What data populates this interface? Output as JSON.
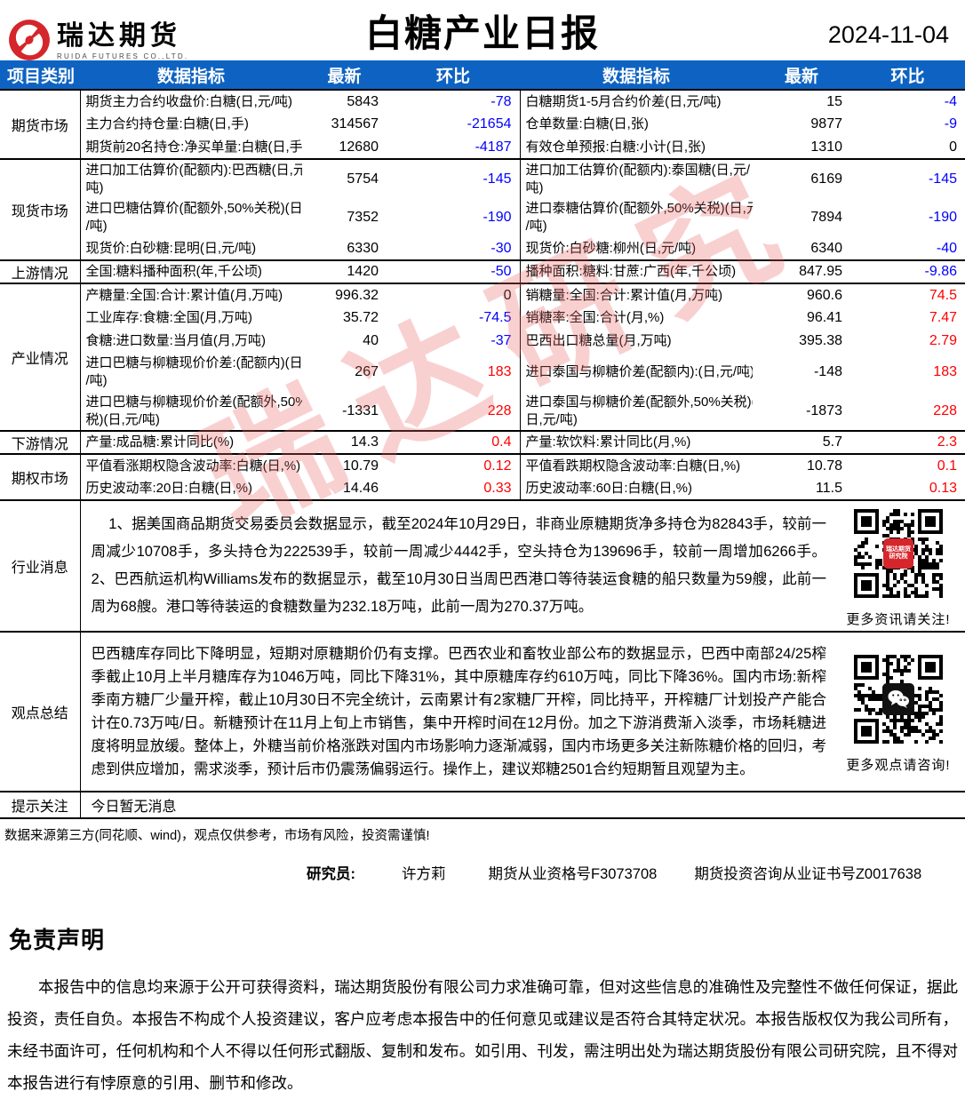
{
  "header": {
    "brand": "瑞达期货",
    "brand_sub": "RUIDA FUTURES CO.,LTD.",
    "title": "白糖产业日报",
    "date": "2024-11-04"
  },
  "colors": {
    "header_bg": "#0e63c2",
    "down": "#0000fe",
    "up": "#fe0000",
    "flat": "#000000",
    "logo_red": "#d5262b",
    "watermark": "rgba(236,100,100,0.30)"
  },
  "watermark": {
    "text": "瑞达研究"
  },
  "table": {
    "headers": {
      "category": "项目类别",
      "indicator": "数据指标",
      "latest": "最新",
      "change": "环比"
    },
    "sections": [
      {
        "category": "期货市场",
        "rows": [
          {
            "l": [
              "期货主力合约收盘价:白糖(日,元/吨)",
              "5843",
              "-78",
              "down"
            ],
            "r": [
              "白糖期货1-5月合约价差(日,元/吨)",
              "15",
              "-4",
              "down"
            ]
          },
          {
            "l": [
              "主力合约持仓量:白糖(日,手)",
              "314567",
              "-21654",
              "down"
            ],
            "r": [
              "仓单数量:白糖(日,张)",
              "9877",
              "-9",
              "down"
            ]
          },
          {
            "l": [
              "期货前20名持仓:净买单量:白糖(日,手)",
              "12680",
              "-4187",
              "down"
            ],
            "r": [
              "有效仓单预报:白糖:小计(日,张)",
              "1310",
              "0",
              "flat"
            ]
          }
        ]
      },
      {
        "category": "现货市场",
        "rows": [
          {
            "l": [
              "进口加工估算价(配额内):巴西糖(日,元/\n吨)",
              "5754",
              "-145",
              "down"
            ],
            "r": [
              "进口加工估算价(配额内):泰国糖(日,元/\n吨)",
              "6169",
              "-145",
              "down"
            ]
          },
          {
            "l": [
              "进口巴糖估算价(配额外,50%关税)(日,元\n/吨)",
              "7352",
              "-190",
              "down"
            ],
            "r": [
              "进口泰糖估算价(配额外,50%关税)(日,元\n/吨)",
              "7894",
              "-190",
              "down"
            ]
          },
          {
            "l": [
              "现货价:白砂糖:昆明(日,元/吨)",
              "6330",
              "-30",
              "down"
            ],
            "r": [
              "现货价:白砂糖:柳州(日,元/吨)",
              "6340",
              "-40",
              "down"
            ]
          }
        ]
      },
      {
        "category": "上游情况",
        "rows": [
          {
            "l": [
              "全国:糖料播种面积(年,千公顷)",
              "1420",
              "-50",
              "down"
            ],
            "r": [
              "播种面积:糖料:甘蔗:广西(年,千公顷)",
              "847.95",
              "-9.86",
              "down"
            ]
          }
        ]
      },
      {
        "category": "产业情况",
        "rows": [
          {
            "l": [
              "产糖量:全国:合计:累计值(月,万吨)",
              "996.32",
              "0",
              "flat"
            ],
            "r": [
              "销糖量:全国:合计:累计值(月,万吨)",
              "960.6",
              "74.5",
              "up"
            ]
          },
          {
            "l": [
              "工业库存:食糖:全国(月,万吨)",
              "35.72",
              "-74.5",
              "down"
            ],
            "r": [
              "销糖率:全国:合计(月,%)",
              "96.41",
              "7.47",
              "up"
            ]
          },
          {
            "l": [
              "食糖:进口数量:当月值(月,万吨)",
              "40",
              "-37",
              "down"
            ],
            "r": [
              "巴西出口糖总量(月,万吨)",
              "395.38",
              "2.79",
              "up"
            ]
          },
          {
            "l": [
              "进口巴糖与柳糖现价价差:(配额内)(日,元\n/吨)",
              "267",
              "183",
              "up"
            ],
            "r": [
              "进口泰国与柳糖价差(配额内):(日,元/吨)",
              "-148",
              "183",
              "up"
            ]
          },
          {
            "l": [
              "进口巴糖与柳糖现价价差(配额外,50%关\n税)(日,元/吨)",
              "-1331",
              "228",
              "up"
            ],
            "r": [
              "进口泰国与柳糖价差(配额外,50%关税)(\n日,元/吨)",
              "-1873",
              "228",
              "up"
            ]
          }
        ]
      },
      {
        "category": "下游情况",
        "rows": [
          {
            "l": [
              "产量:成品糖:累计同比(%)",
              "14.3",
              "0.4",
              "up"
            ],
            "r": [
              "产量:软饮料:累计同比(月,%)",
              "5.7",
              "2.3",
              "up"
            ]
          }
        ]
      },
      {
        "category": "期权市场",
        "rows": [
          {
            "l": [
              "平值看涨期权隐含波动率:白糖(日,%)",
              "10.79",
              "0.12",
              "up"
            ],
            "r": [
              "平值看跌期权隐含波动率:白糖(日,%)",
              "10.78",
              "0.1",
              "up"
            ]
          },
          {
            "l": [
              "历史波动率:20日:白糖(日,%)",
              "14.46",
              "0.33",
              "up"
            ],
            "r": [
              "历史波动率:60日:白糖(日,%)",
              "11.5",
              "0.13",
              "up"
            ]
          }
        ]
      }
    ],
    "notes": [
      {
        "category": "行业消息",
        "text": "1、据美国商品期货交易委员会数据显示，截至2024年10月29日，非商业原糖期货净多持仓为82843手，较前一周减少10708手，多头持仓为222539手，较前一周减少4442手，空头持仓为139696手，较前一周增加6266手。 2、巴西航运机构Williams发布的数据显示，截至10月30日当周巴西港口等待装运食糖的船只数量为59艘，此前一周为68艘。港口等待装运的食糖数量为232.18万吨，此前一周为270.37万吨。",
        "qr_caption": "更多资讯请关注!",
        "qr_center_lines": [
          "瑞达期货",
          "研究院"
        ]
      },
      {
        "category": "观点总结",
        "text": "巴西糖库存同比下降明显，短期对原糖期价仍有支撑。巴西农业和畜牧业部公布的数据显示，巴西中南部24/25榨季截止10月上半月糖库存为1046万吨，同比下降31%，其中原糖库存约610万吨，同比下降36%。国内市场:新榨季南方糖厂少量开榨，截止10月30日不完全统计，云南累计有2家糖厂开榨，同比持平，开榨糖厂计划投产产能合计在0.73万吨/日。新糖预计在11月上旬上市销售，集中开榨时间在12月份。加之下游消费渐入淡季，市场耗糖进度将明显放缓。整体上，外糖当前价格涨跌对国内市场影响力逐渐减弱，国内市场更多关注新陈糖价格的回归，考虑到供应增加，需求淡季，预计后市仍震荡偏弱运行。操作上，建议郑糖2501合约短期暂且观望为主。",
        "qr_caption": "更多观点请咨询!"
      },
      {
        "category": "提示关注",
        "text": "今日暂无消息"
      }
    ]
  },
  "footer": {
    "source_note": "数据来源第三方(同花顺、wind)，观点仅供参考，市场有风险，投资需谨慎!",
    "researcher_label": "研究员:",
    "researcher_name": "许方莉",
    "cert1": "期货从业资格号F3073708",
    "cert2": "期货投资咨询从业证书号Z0017638"
  },
  "disclaimer": {
    "title": "免责声明",
    "body": "本报告中的信息均来源于公开可获得资料，瑞达期货股份有限公司力求准确可靠，但对这些信息的准确性及完整性不做任何保证，据此投资，责任自负。本报告不构成个人投资建议，客户应考虑本报告中的任何意见或建议是否符合其特定状况。本报告版权仅为我公司所有，未经书面许可，任何机构和个人不得以任何形式翻版、复制和发布。如引用、刊发，需注明出处为瑞达期货股份有限公司研究院，且不得对本报告进行有悖原意的引用、删节和修改。"
  }
}
